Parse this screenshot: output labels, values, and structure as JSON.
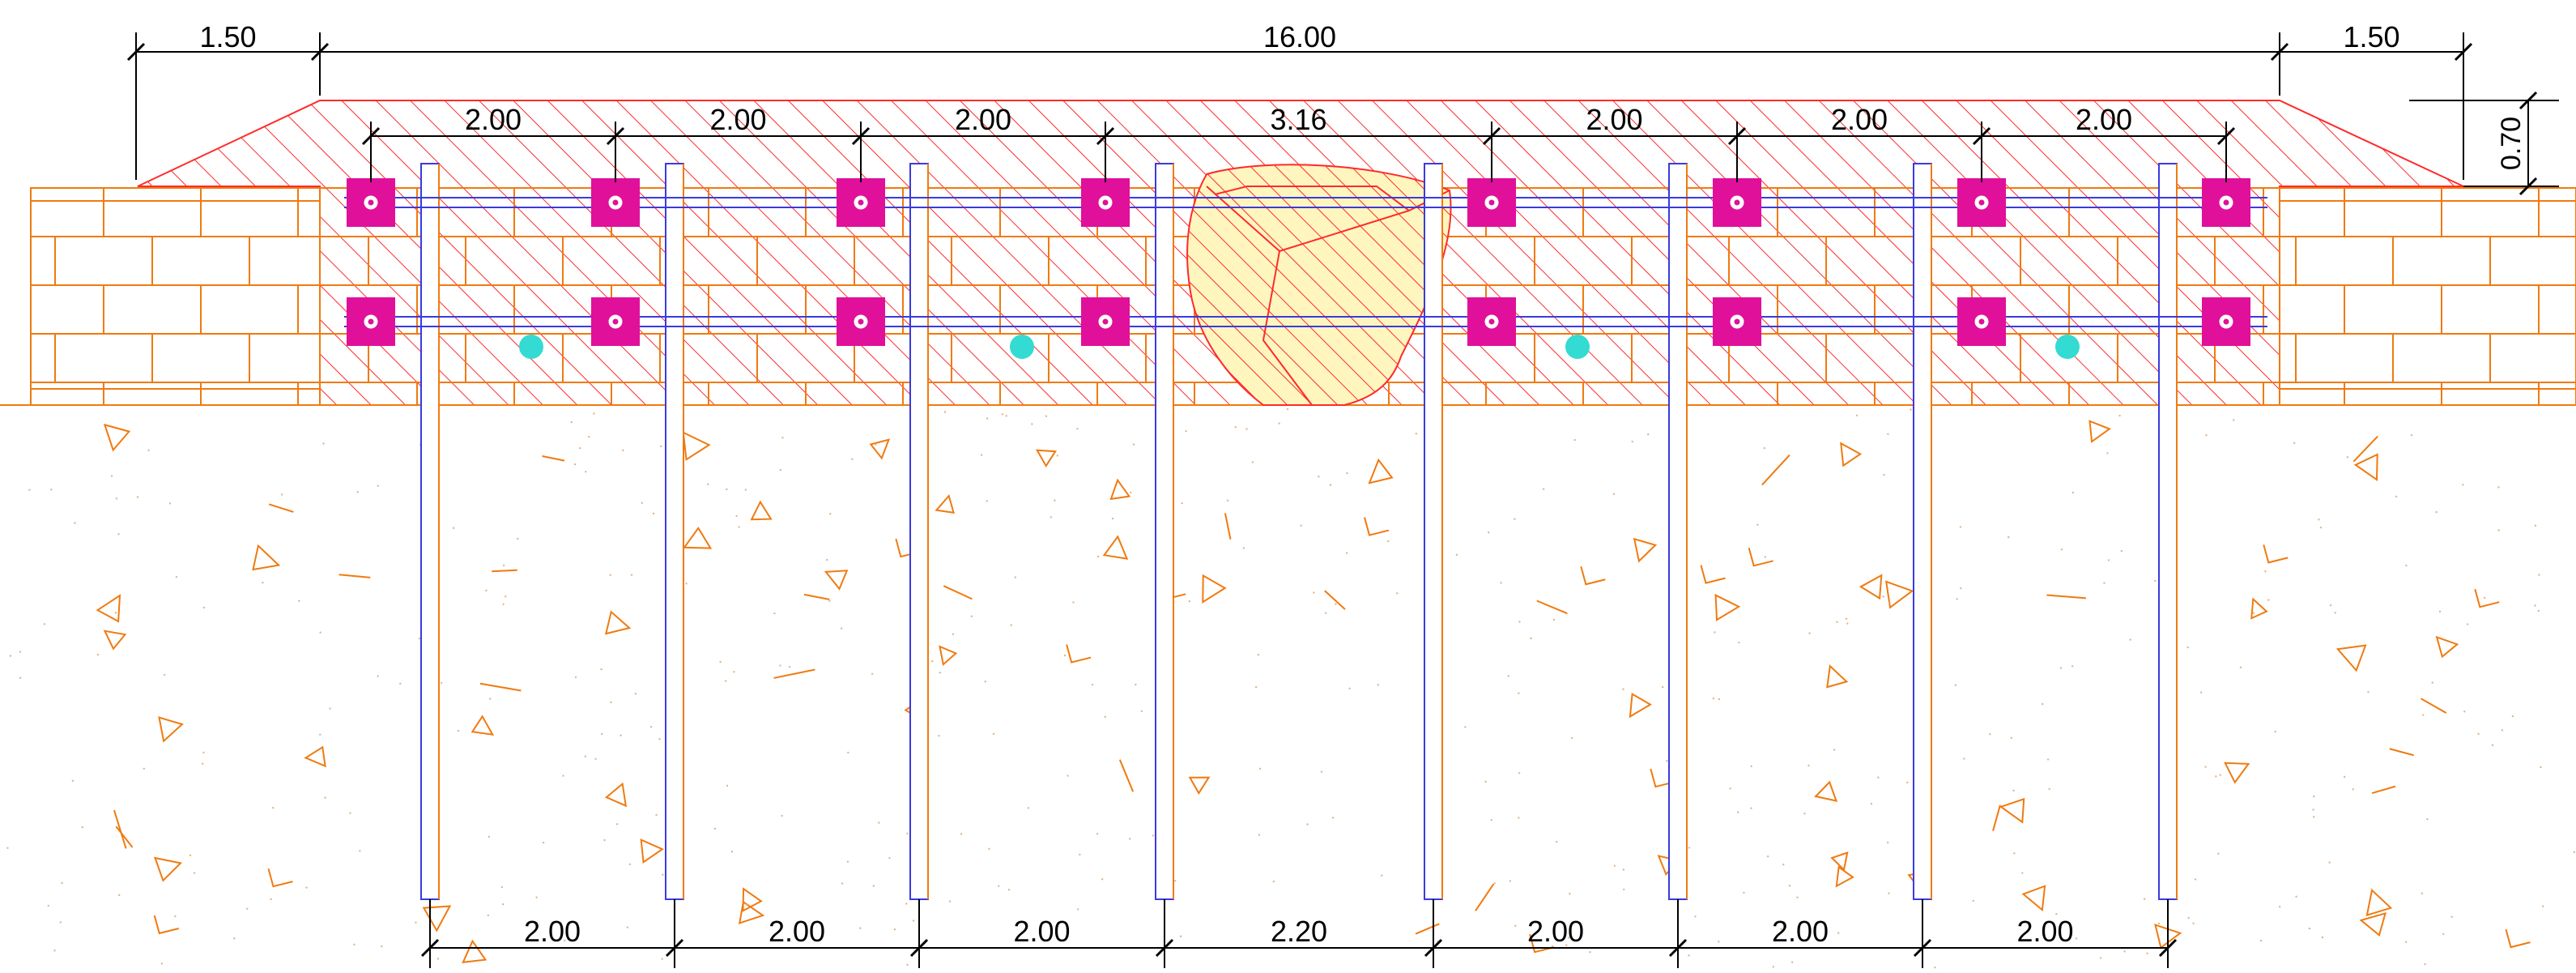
{
  "overall_dims": {
    "left_overhang": "1.50",
    "total_length": "16.00",
    "right_overhang": "1.50",
    "height": "0.70"
  },
  "top_anchor_spacings": [
    "2.00",
    "2.00",
    "2.00",
    "3.16",
    "2.00",
    "2.00",
    "2.00"
  ],
  "bottom_pile_spacings": [
    "2.00",
    "2.00",
    "2.00",
    "2.20",
    "2.00",
    "2.00",
    "2.00"
  ],
  "colors": {
    "hatch": "#ff2a2a",
    "masonry": "#f07a10",
    "pile_blue": "#3a3ae0",
    "anchor": "#e0109a",
    "dot": "#33dbd2",
    "boulder_fill": "#fff6bf",
    "dim_line": "#000000"
  },
  "icons": {
    "anchor_plate": "magenta-square-icon",
    "drain_hole": "cyan-dot-icon"
  }
}
